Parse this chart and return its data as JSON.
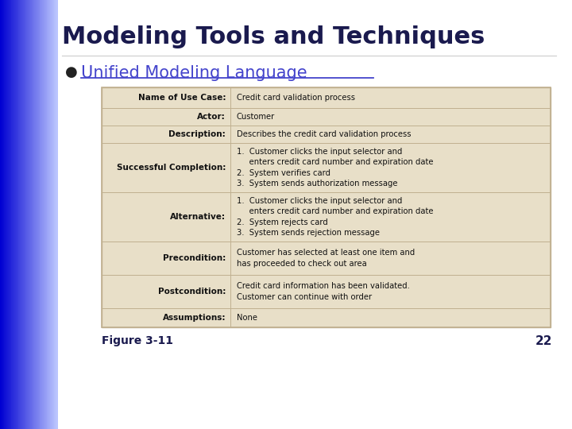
{
  "title": "Modeling Tools and Techniques",
  "bullet_text": "Unified Modeling Language",
  "figure_label": "Figure 3-11",
  "page_number": "22",
  "bg_color": "#ffffff",
  "title_color": "#1a1a4e",
  "bullet_color": "#4444cc",
  "table_bg": "#e8dfc8",
  "table_border": "#c0b090",
  "rows": [
    {
      "label": "Name of Use Case:",
      "value": "Credit card validation process"
    },
    {
      "label": "Actor:",
      "value": "Customer"
    },
    {
      "label": "Description:",
      "value": "Describes the credit card validation process"
    },
    {
      "label": "Successful Completion:",
      "value": "1.  Customer clicks the input selector and\n     enters credit card number and expiration date\n2.  System verifies card\n3.  System sends authorization message"
    },
    {
      "label": "Alternative:",
      "value": "1.  Customer clicks the input selector and\n     enters credit card number and expiration date\n2.  System rejects card\n3.  System sends rejection message"
    },
    {
      "label": "Precondition:",
      "value": "Customer has selected at least one item and\nhas proceeded to check out area"
    },
    {
      "label": "Postcondition:",
      "value": "Credit card information has been validated.\nCustomer can continue with order"
    },
    {
      "label": "Assumptions:",
      "value": "None"
    }
  ]
}
